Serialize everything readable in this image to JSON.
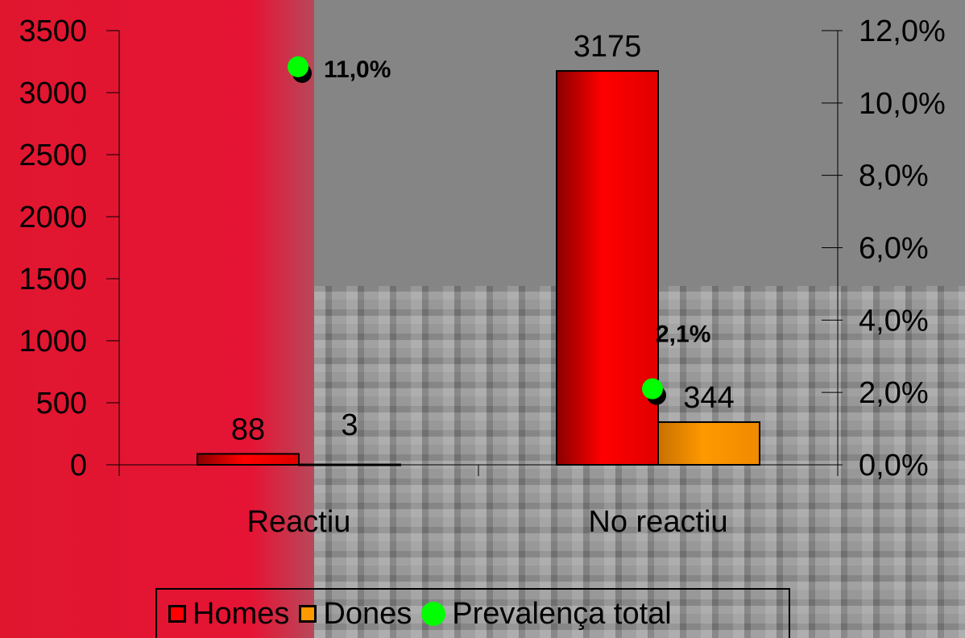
{
  "chart_data": {
    "type": "bar",
    "categories": [
      "Reactiu",
      "No reactiu"
    ],
    "series": [
      {
        "name": "Homes",
        "values": [
          88,
          3175
        ],
        "color": "#ff0000"
      },
      {
        "name": "Dones",
        "values": [
          3,
          344
        ],
        "color": "#ff9900"
      }
    ],
    "line_series": {
      "name": "Prevalença total",
      "values": [
        11.0,
        2.1
      ],
      "labels": [
        "11,0%",
        "2,1%"
      ],
      "color": "#00ff00"
    },
    "data_labels": [
      [
        "88",
        "3"
      ],
      [
        "3175",
        "344"
      ]
    ],
    "y_left": {
      "min": 0,
      "max": 3500,
      "step": 500,
      "ticks": [
        "0",
        "500",
        "1000",
        "1500",
        "2000",
        "2500",
        "3000",
        "3500"
      ]
    },
    "y_right": {
      "min": 0,
      "max": 12,
      "step": 2,
      "ticks": [
        "0,0%",
        "2,0%",
        "4,0%",
        "6,0%",
        "8,0%",
        "10,0%",
        "12,0%"
      ]
    },
    "legend_position": "bottom",
    "grid": false
  },
  "legend": {
    "homes": "Homes",
    "dones": "Dones",
    "prevalence": "Prevalença total"
  }
}
